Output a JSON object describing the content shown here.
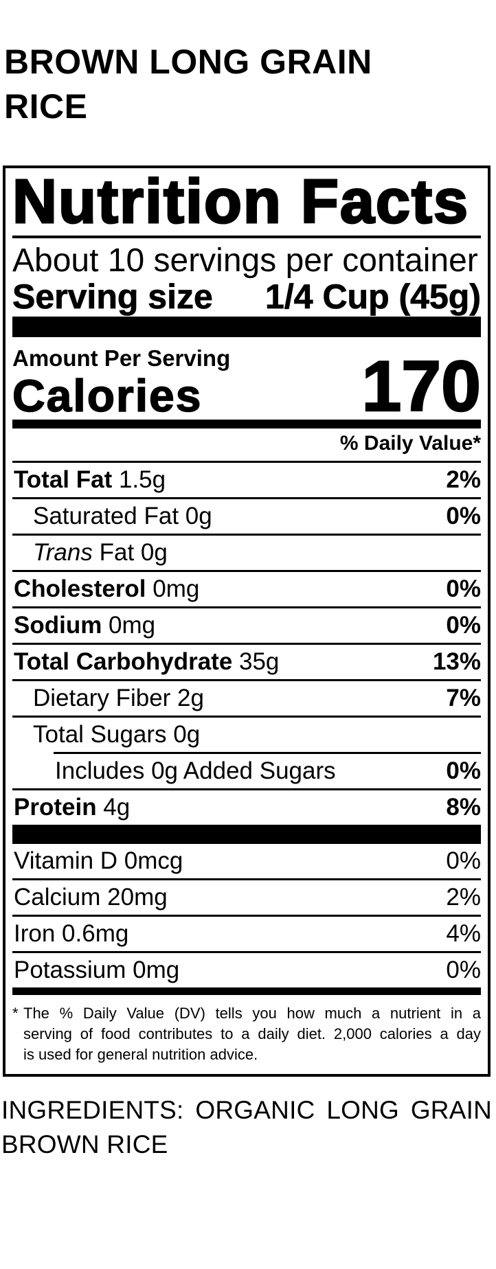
{
  "page": {
    "background": "#ffffff",
    "text_color": "#000000"
  },
  "product": {
    "title": "BROWN LONG GRAIN RICE"
  },
  "nutrition_facts": {
    "title": "Nutrition Facts",
    "servings_per_container": "About 10 servings per container",
    "serving_size": {
      "label": "Serving size",
      "value": "1/4 Cup (45g)"
    },
    "amount_per_serving": "Amount Per Serving",
    "calories": {
      "label": "Calories",
      "value": "170"
    },
    "daily_value_header": "% Daily Value*",
    "nutrients": [
      {
        "parts": [
          {
            "text": "Total Fat",
            "bold": true
          },
          {
            "text": " 1.5g"
          }
        ],
        "dv": "2%",
        "dv_bold": true,
        "indent": 0,
        "rule": "none"
      },
      {
        "parts": [
          {
            "text": "Saturated Fat 0g"
          }
        ],
        "dv": "0%",
        "dv_bold": true,
        "indent": 1,
        "rule": "full"
      },
      {
        "parts": [
          {
            "text": "Trans",
            "italic": true
          },
          {
            "text": " Fat 0g"
          }
        ],
        "dv": "",
        "dv_bold": false,
        "indent": 1,
        "rule": "full"
      },
      {
        "parts": [
          {
            "text": "Cholesterol",
            "bold": true
          },
          {
            "text": " 0mg"
          }
        ],
        "dv": "0%",
        "dv_bold": true,
        "indent": 0,
        "rule": "full"
      },
      {
        "parts": [
          {
            "text": "Sodium",
            "bold": true
          },
          {
            "text": " 0mg"
          }
        ],
        "dv": "0%",
        "dv_bold": true,
        "indent": 0,
        "rule": "full"
      },
      {
        "parts": [
          {
            "text": "Total Carbohydrate",
            "bold": true
          },
          {
            "text": " 35g"
          }
        ],
        "dv": "13%",
        "dv_bold": true,
        "indent": 0,
        "rule": "full"
      },
      {
        "parts": [
          {
            "text": "Dietary Fiber 2g"
          }
        ],
        "dv": "7%",
        "dv_bold": true,
        "indent": 1,
        "rule": "full"
      },
      {
        "parts": [
          {
            "text": "Total Sugars 0g"
          }
        ],
        "dv": "",
        "dv_bold": false,
        "indent": 1,
        "rule": "full"
      },
      {
        "parts": [
          {
            "text": "Includes 0g Added Sugars"
          }
        ],
        "dv": "0%",
        "dv_bold": true,
        "indent": 2,
        "rule": "indent"
      },
      {
        "parts": [
          {
            "text": "Protein",
            "bold": true
          },
          {
            "text": " 4g"
          }
        ],
        "dv": "8%",
        "dv_bold": true,
        "indent": 0,
        "rule": "full"
      }
    ],
    "vitamins": [
      {
        "name": "Vitamin D 0mcg",
        "dv": "0%"
      },
      {
        "name": "Calcium 20mg",
        "dv": "2%"
      },
      {
        "name": "Iron 0.6mg",
        "dv": "4%"
      },
      {
        "name": "Potassium 0mg",
        "dv": "0%"
      }
    ],
    "footnote": {
      "marker": "*",
      "lines": [
        "The % Daily Value (DV) tells you how much a nutrient in a",
        "serving of food contributes to a daily diet. 2,000 calories a day",
        "is used for general nutrition advice."
      ]
    }
  },
  "ingredients": {
    "label": "INGREDIENTS:",
    "text": "ORGANIC LONG GRAIN BROWN RICE"
  }
}
